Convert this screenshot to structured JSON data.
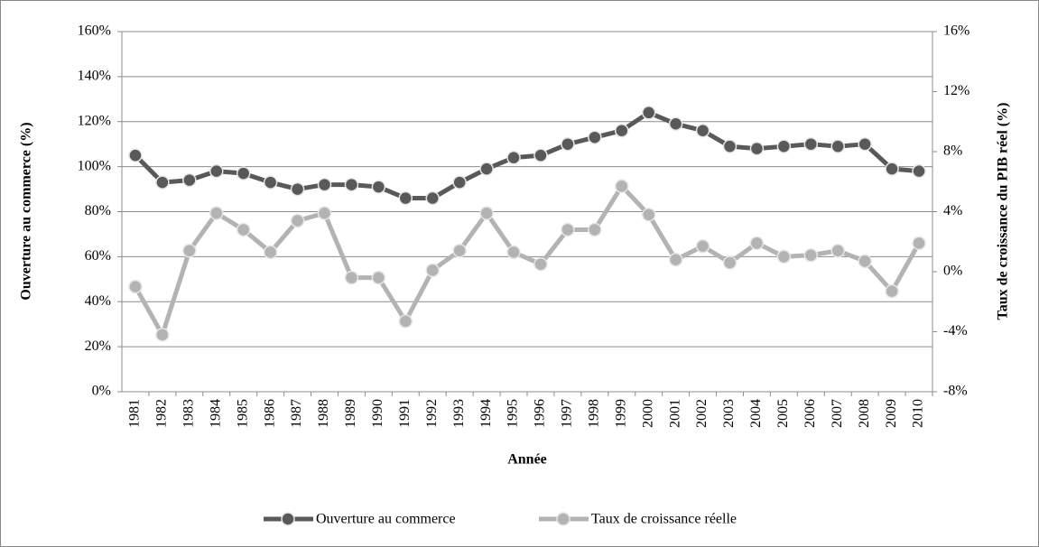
{
  "chart_data": {
    "type": "line",
    "x_label": "Année",
    "y_label": "Ouverture au commerce (%)",
    "y2_label": "Taux de croissance du PIB réel (%)",
    "categories": [
      "1981",
      "1982",
      "1983",
      "1984",
      "1985",
      "1986",
      "1987",
      "1988",
      "1989",
      "1990",
      "1991",
      "1992",
      "1993",
      "1994",
      "1995",
      "1996",
      "1997",
      "1998",
      "1999",
      "2000",
      "2001",
      "2002",
      "2003",
      "2004",
      "2005",
      "2006",
      "2007",
      "2008",
      "2009",
      "2010"
    ],
    "series": [
      {
        "name": "Ouverture au commerce",
        "color": "#595959",
        "axis": "y",
        "values": [
          105,
          93,
          94,
          98,
          97,
          93,
          90,
          92,
          92,
          91,
          86,
          86,
          93,
          99,
          104,
          105,
          110,
          113,
          116,
          124,
          119,
          116,
          109,
          108,
          109,
          110,
          109,
          110,
          99,
          98
        ]
      },
      {
        "name": "Taux de croissance réelle",
        "color": "#b3b3b3",
        "axis": "y2",
        "values": [
          -1.0,
          -4.2,
          1.4,
          3.9,
          2.8,
          1.3,
          3.4,
          3.9,
          -0.4,
          -0.4,
          -3.3,
          0.1,
          1.4,
          3.9,
          1.3,
          0.5,
          2.8,
          2.8,
          5.7,
          3.8,
          0.8,
          1.7,
          0.6,
          1.9,
          1.0,
          1.1,
          1.4,
          0.7,
          -1.3,
          1.9
        ]
      }
    ],
    "ylim": [
      0,
      160
    ],
    "yticks": [
      {
        "value": 0,
        "label": "0%"
      },
      {
        "value": 20,
        "label": "20%"
      },
      {
        "value": 40,
        "label": "40%"
      },
      {
        "value": 60,
        "label": "60%"
      },
      {
        "value": 80,
        "label": "80%"
      },
      {
        "value": 100,
        "label": "100%"
      },
      {
        "value": 120,
        "label": "120%"
      },
      {
        "value": 140,
        "label": "140%"
      },
      {
        "value": 160,
        "label": "160%"
      }
    ],
    "y2lim": [
      -8,
      16
    ],
    "y2ticks": [
      {
        "value": -8,
        "label": "-8%"
      },
      {
        "value": -4,
        "label": "-4%"
      },
      {
        "value": 0,
        "label": "0%"
      },
      {
        "value": 4,
        "label": "4%"
      },
      {
        "value": 8,
        "label": "8%"
      },
      {
        "value": 12,
        "label": "12%"
      },
      {
        "value": 16,
        "label": "16%"
      }
    ],
    "grid": true,
    "legend": "bottom"
  }
}
